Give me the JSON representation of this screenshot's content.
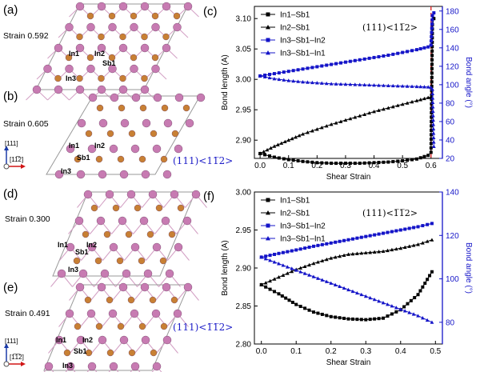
{
  "panels": {
    "a": {
      "label": "(a)",
      "strain": "Strain 0.592"
    },
    "b": {
      "label": "(b)",
      "strain": "Strain 0.605"
    },
    "d": {
      "label": "(d)",
      "strain": "Strain 0.300"
    },
    "e": {
      "label": "(e)",
      "strain": "Strain 0.491"
    },
    "c": {
      "label": "(c)"
    },
    "f": {
      "label": "(f)"
    }
  },
  "atom_labels": {
    "in1": "In1",
    "in2": "In2",
    "in3": "In3",
    "sb1": "Sb1"
  },
  "axes_labels": {
    "a111": "[111]",
    "b112": "[11̅2]",
    "e112": "[1̅1̅2]"
  },
  "direction_labels": {
    "b": "(111)<11̅2>",
    "e": "(111)<1̅1̅2>"
  },
  "colors": {
    "in_atom": "#c77bb2",
    "sb_atom": "#c88034",
    "left_axis": "#000000",
    "right_axis": "#1414c8",
    "transition_line": "#e02020"
  },
  "chart_data": [
    {
      "type": "line",
      "panel": "c",
      "annotation": "(111)<11̅2>",
      "xlabel": "Shear Strain",
      "ylabel": "Bond length (A)",
      "y2label": "Bond angle (°)",
      "xlim": [
        -0.02,
        0.64
      ],
      "ylim": [
        2.87,
        3.12
      ],
      "y2lim": [
        20,
        185
      ],
      "xticks": [
        "0.0",
        "0.1",
        "0.2",
        "0.3",
        "0.4",
        "0.5",
        "0.6"
      ],
      "yticks": [
        "2.90",
        "2.95",
        "3.00",
        "3.05",
        "3.10"
      ],
      "y2ticks": [
        "20",
        "40",
        "60",
        "80",
        "100",
        "120",
        "140",
        "160",
        "180"
      ],
      "transition_x": 0.6,
      "series": [
        {
          "name": "In1–Sb1",
          "axis": "left",
          "marker": "square",
          "color": "#000000",
          "x": [
            0.0,
            0.05,
            0.1,
            0.15,
            0.2,
            0.25,
            0.3,
            0.35,
            0.4,
            0.45,
            0.5,
            0.55,
            0.59,
            0.6,
            0.605,
            0.61
          ],
          "y": [
            2.878,
            2.872,
            2.868,
            2.865,
            2.863,
            2.862,
            2.862,
            2.862,
            2.863,
            2.864,
            2.866,
            2.869,
            2.875,
            2.88,
            3.09,
            3.1
          ]
        },
        {
          "name": "In2–Sb1",
          "axis": "left",
          "marker": "triangle",
          "color": "#000000",
          "x": [
            0.0,
            0.05,
            0.1,
            0.15,
            0.2,
            0.25,
            0.3,
            0.35,
            0.4,
            0.45,
            0.5,
            0.55,
            0.59,
            0.6
          ],
          "y": [
            2.878,
            2.89,
            2.9,
            2.91,
            2.918,
            2.926,
            2.933,
            2.94,
            2.947,
            2.953,
            2.959,
            2.965,
            2.97,
            2.971
          ]
        },
        {
          "name": "In3–Sb1–In2",
          "axis": "right",
          "marker": "square",
          "color": "#1414c8",
          "x": [
            0.0,
            0.05,
            0.1,
            0.15,
            0.2,
            0.25,
            0.3,
            0.35,
            0.4,
            0.45,
            0.5,
            0.55,
            0.59,
            0.6,
            0.605,
            0.61
          ],
          "y": [
            109.5,
            112,
            114.5,
            117,
            119.5,
            122,
            124.5,
            127,
            129.5,
            132,
            135,
            138,
            141,
            143,
            175,
            178
          ]
        },
        {
          "name": "In3–Sb1–In1",
          "axis": "right",
          "marker": "triangle",
          "color": "#1414c8",
          "x": [
            0.0,
            0.05,
            0.1,
            0.15,
            0.2,
            0.25,
            0.3,
            0.35,
            0.4,
            0.45,
            0.5,
            0.55,
            0.59,
            0.6,
            0.605,
            0.61
          ],
          "y": [
            109.5,
            106.5,
            104.5,
            103,
            102,
            101,
            100.5,
            100,
            99.5,
            99,
            98.5,
            98,
            97.5,
            97,
            95,
            33
          ]
        }
      ]
    },
    {
      "type": "line",
      "panel": "f",
      "annotation": "(111)<1̅1̅2>",
      "xlabel": "Shear Strain",
      "ylabel": "Bond length (A)",
      "y2label": "Bond angle (°)",
      "xlim": [
        -0.02,
        0.52
      ],
      "ylim": [
        2.8,
        3.0
      ],
      "y2lim": [
        70,
        140
      ],
      "xticks": [
        "0.0",
        "0.1",
        "0.2",
        "0.3",
        "0.4",
        "0.5"
      ],
      "yticks": [
        "2.80",
        "2.85",
        "2.90",
        "2.95",
        "3.00"
      ],
      "y2ticks": [
        "80",
        "100",
        "120",
        "140"
      ],
      "series": [
        {
          "name": "In1–Sb1",
          "axis": "left",
          "marker": "square",
          "color": "#000000",
          "x": [
            0.0,
            0.05,
            0.1,
            0.15,
            0.2,
            0.25,
            0.3,
            0.35,
            0.4,
            0.45,
            0.49
          ],
          "y": [
            2.878,
            2.866,
            2.852,
            2.842,
            2.836,
            2.833,
            2.832,
            2.834,
            2.845,
            2.865,
            2.895
          ]
        },
        {
          "name": "In2–Sb1",
          "axis": "left",
          "marker": "triangle",
          "color": "#000000",
          "x": [
            0.0,
            0.05,
            0.1,
            0.15,
            0.2,
            0.25,
            0.3,
            0.35,
            0.4,
            0.45,
            0.49
          ],
          "y": [
            2.878,
            2.888,
            2.898,
            2.906,
            2.913,
            2.918,
            2.92,
            2.922,
            2.926,
            2.931,
            2.937
          ]
        },
        {
          "name": "In3–Sb1–In2",
          "axis": "right",
          "marker": "square",
          "color": "#1414c8",
          "x": [
            0.0,
            0.05,
            0.1,
            0.15,
            0.2,
            0.25,
            0.3,
            0.35,
            0.4,
            0.45,
            0.49
          ],
          "y": [
            110,
            111.7,
            113.3,
            115,
            116.5,
            118,
            119.5,
            121,
            122.5,
            124,
            125.5
          ]
        },
        {
          "name": "In3–Sb1–In1",
          "axis": "right",
          "marker": "triangle",
          "color": "#1414c8",
          "x": [
            0.0,
            0.05,
            0.1,
            0.15,
            0.2,
            0.25,
            0.3,
            0.35,
            0.4,
            0.45,
            0.49
          ],
          "y": [
            110,
            107,
            104,
            101,
            98,
            95,
            92,
            89,
            86,
            83,
            80
          ]
        }
      ]
    }
  ]
}
